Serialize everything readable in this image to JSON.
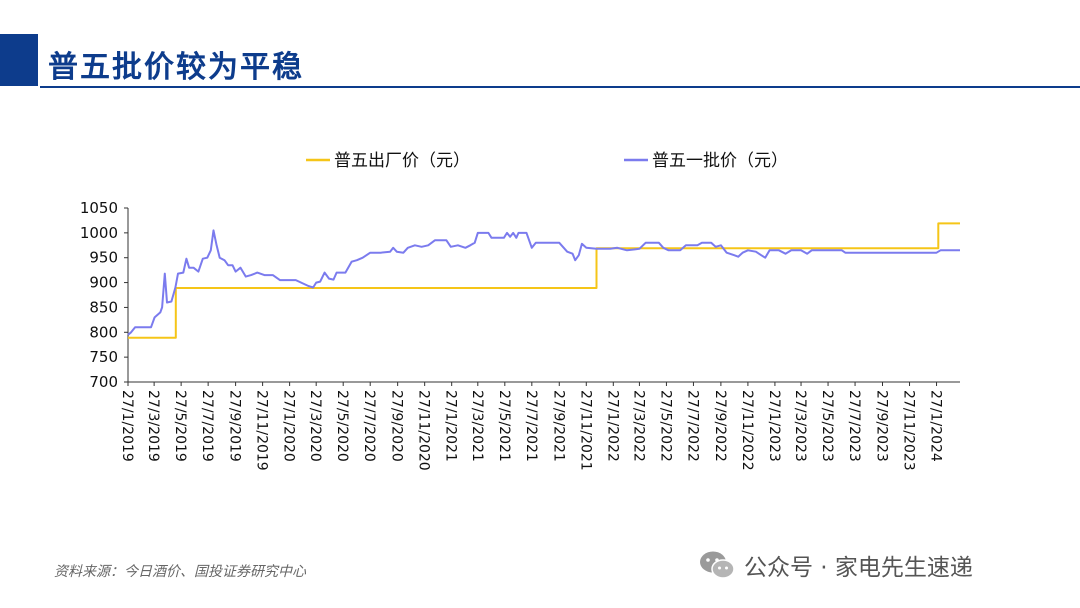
{
  "page": {
    "title": "普五批价较为平稳",
    "source": "资料来源：今日酒价、国投证券研究中心",
    "watermark": "公众号 · 家电先生速递",
    "accent_color": "#0d3c8c"
  },
  "chart_data": {
    "type": "line",
    "title": "",
    "xlabel": "",
    "ylabel": "",
    "ylim": [
      700,
      1050
    ],
    "yticks": [
      700,
      750,
      800,
      850,
      900,
      950,
      1000,
      1050
    ],
    "xlim": [
      "2019-01-27",
      "2024-03-20"
    ],
    "xtick_labels": [
      "27/1/2019",
      "27/3/2019",
      "27/5/2019",
      "27/7/2019",
      "27/9/2019",
      "27/11/2019",
      "27/1/2020",
      "27/3/2020",
      "27/5/2020",
      "27/7/2020",
      "27/9/2020",
      "27/11/2020",
      "27/1/2021",
      "27/3/2021",
      "27/5/2021",
      "27/7/2021",
      "27/9/2021",
      "27/11/2021",
      "27/1/2022",
      "27/3/2022",
      "27/5/2022",
      "27/7/2022",
      "27/9/2022",
      "27/11/2022",
      "27/1/2023",
      "27/3/2023",
      "27/5/2023",
      "27/7/2023",
      "27/9/2023",
      "27/11/2023",
      "27/1/2024"
    ],
    "legend_position": "top",
    "grid": false,
    "series": [
      {
        "name": "普五出厂价（元）",
        "color": "#f5c518",
        "step": true,
        "points": [
          [
            "2019-01-27",
            789
          ],
          [
            "2019-05-15",
            889
          ],
          [
            "2021-12-20",
            969
          ],
          [
            "2024-01-31",
            1019
          ],
          [
            "2024-03-20",
            1019
          ]
        ]
      },
      {
        "name": "普五一批价（元）",
        "color": "#7b7bee",
        "step": false,
        "points": [
          [
            "2019-01-27",
            795
          ],
          [
            "2019-02-03",
            800
          ],
          [
            "2019-02-12",
            810
          ],
          [
            "2019-03-20",
            810
          ],
          [
            "2019-03-28",
            830
          ],
          [
            "2019-04-10",
            840
          ],
          [
            "2019-04-14",
            850
          ],
          [
            "2019-04-20",
            918
          ],
          [
            "2019-04-25",
            860
          ],
          [
            "2019-05-05",
            862
          ],
          [
            "2019-05-14",
            890
          ],
          [
            "2019-05-20",
            918
          ],
          [
            "2019-06-01",
            920
          ],
          [
            "2019-06-08",
            948
          ],
          [
            "2019-06-14",
            930
          ],
          [
            "2019-06-24",
            930
          ],
          [
            "2019-07-05",
            922
          ],
          [
            "2019-07-15",
            948
          ],
          [
            "2019-07-25",
            950
          ],
          [
            "2019-08-02",
            965
          ],
          [
            "2019-08-08",
            1005
          ],
          [
            "2019-08-15",
            975
          ],
          [
            "2019-08-22",
            950
          ],
          [
            "2019-09-02",
            945
          ],
          [
            "2019-09-10",
            935
          ],
          [
            "2019-09-20",
            935
          ],
          [
            "2019-09-27",
            922
          ],
          [
            "2019-10-08",
            930
          ],
          [
            "2019-10-20",
            912
          ],
          [
            "2019-11-01",
            915
          ],
          [
            "2019-11-15",
            920
          ],
          [
            "2019-12-01",
            915
          ],
          [
            "2019-12-20",
            915
          ],
          [
            "2020-01-05",
            905
          ],
          [
            "2020-02-10",
            905
          ],
          [
            "2020-02-27",
            898
          ],
          [
            "2020-03-10",
            893
          ],
          [
            "2020-03-20",
            890
          ],
          [
            "2020-03-27",
            900
          ],
          [
            "2020-04-05",
            902
          ],
          [
            "2020-04-15",
            920
          ],
          [
            "2020-04-25",
            908
          ],
          [
            "2020-05-05",
            906
          ],
          [
            "2020-05-12",
            920
          ],
          [
            "2020-06-01",
            920
          ],
          [
            "2020-06-15",
            942
          ],
          [
            "2020-06-27",
            945
          ],
          [
            "2020-07-10",
            950
          ],
          [
            "2020-07-27",
            960
          ],
          [
            "2020-08-20",
            960
          ],
          [
            "2020-09-10",
            962
          ],
          [
            "2020-09-17",
            970
          ],
          [
            "2020-09-25",
            962
          ],
          [
            "2020-10-10",
            960
          ],
          [
            "2020-10-20",
            970
          ],
          [
            "2020-11-05",
            975
          ],
          [
            "2020-11-20",
            972
          ],
          [
            "2020-12-05",
            975
          ],
          [
            "2020-12-20",
            985
          ],
          [
            "2021-01-15",
            985
          ],
          [
            "2021-01-25",
            972
          ],
          [
            "2021-02-10",
            975
          ],
          [
            "2021-02-27",
            970
          ],
          [
            "2021-03-10",
            975
          ],
          [
            "2021-03-20",
            980
          ],
          [
            "2021-03-27",
            1000
          ],
          [
            "2021-04-20",
            1000
          ],
          [
            "2021-04-27",
            990
          ],
          [
            "2021-05-25",
            990
          ],
          [
            "2021-06-01",
            1000
          ],
          [
            "2021-06-08",
            992
          ],
          [
            "2021-06-15",
            1000
          ],
          [
            "2021-06-22",
            990
          ],
          [
            "2021-06-27",
            1000
          ],
          [
            "2021-07-15",
            1000
          ],
          [
            "2021-07-27",
            970
          ],
          [
            "2021-08-05",
            980
          ],
          [
            "2021-08-27",
            980
          ],
          [
            "2021-09-27",
            980
          ],
          [
            "2021-10-15",
            962
          ],
          [
            "2021-10-27",
            958
          ],
          [
            "2021-11-02",
            945
          ],
          [
            "2021-11-10",
            955
          ],
          [
            "2021-11-17",
            978
          ],
          [
            "2021-11-27",
            970
          ],
          [
            "2021-12-20",
            968
          ],
          [
            "2022-01-20",
            968
          ],
          [
            "2022-02-05",
            970
          ],
          [
            "2022-02-27",
            965
          ],
          [
            "2022-03-27",
            968
          ],
          [
            "2022-04-10",
            980
          ],
          [
            "2022-05-10",
            980
          ],
          [
            "2022-05-20",
            970
          ],
          [
            "2022-06-01",
            965
          ],
          [
            "2022-06-27",
            965
          ],
          [
            "2022-07-10",
            975
          ],
          [
            "2022-08-05",
            975
          ],
          [
            "2022-08-15",
            980
          ],
          [
            "2022-09-05",
            980
          ],
          [
            "2022-09-15",
            972
          ],
          [
            "2022-09-27",
            975
          ],
          [
            "2022-10-10",
            960
          ],
          [
            "2022-10-27",
            955
          ],
          [
            "2022-11-05",
            952
          ],
          [
            "2022-11-15",
            960
          ],
          [
            "2022-11-27",
            965
          ],
          [
            "2022-12-15",
            962
          ],
          [
            "2022-12-27",
            955
          ],
          [
            "2023-01-05",
            950
          ],
          [
            "2023-01-15",
            965
          ],
          [
            "2023-02-05",
            965
          ],
          [
            "2023-02-20",
            958
          ],
          [
            "2023-03-05",
            965
          ],
          [
            "2023-03-27",
            965
          ],
          [
            "2023-04-10",
            958
          ],
          [
            "2023-04-20",
            965
          ],
          [
            "2023-05-10",
            965
          ],
          [
            "2023-06-27",
            965
          ],
          [
            "2023-07-05",
            960
          ],
          [
            "2023-12-27",
            960
          ],
          [
            "2024-01-10",
            960
          ],
          [
            "2024-01-27",
            960
          ],
          [
            "2024-02-05",
            965
          ],
          [
            "2024-03-20",
            965
          ]
        ]
      }
    ]
  }
}
